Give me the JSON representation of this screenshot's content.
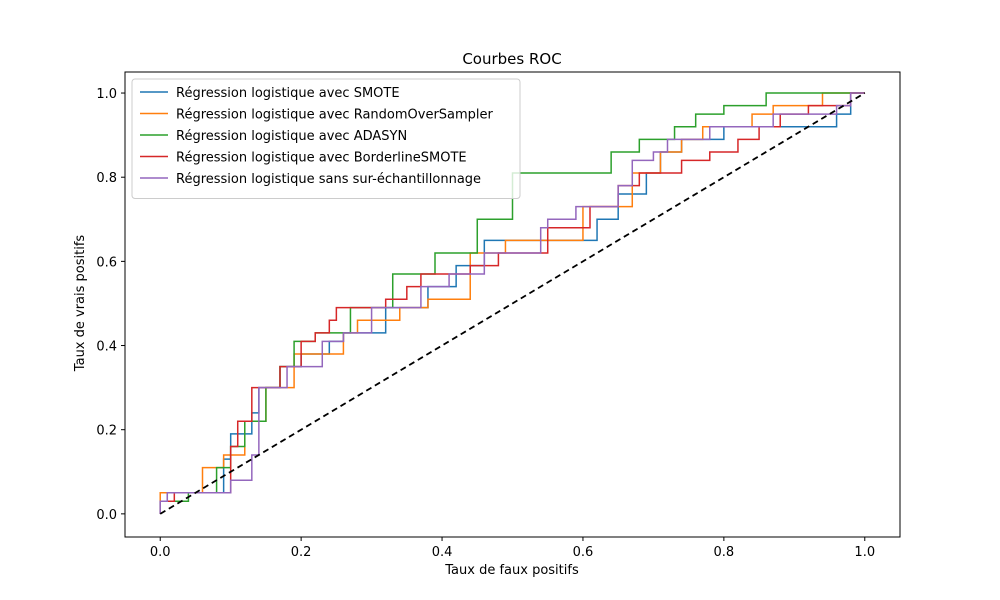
{
  "chart_data": {
    "type": "line",
    "title": "Courbes ROC",
    "xlabel": "Taux de faux positifs",
    "ylabel": "Taux de vrais positifs",
    "xlim": [
      -0.05,
      1.05
    ],
    "ylim": [
      -0.055,
      1.05
    ],
    "xticks": [
      "0.0",
      "0.2",
      "0.4",
      "0.6",
      "0.8",
      "1.0"
    ],
    "yticks": [
      "0.0",
      "0.2",
      "0.4",
      "0.6",
      "0.8",
      "1.0"
    ],
    "grid": false,
    "legend_position": "top-left",
    "chance_line": {
      "x": [
        0,
        1
      ],
      "y": [
        0,
        1
      ],
      "style": "dashed",
      "color": "#000000"
    },
    "series": [
      {
        "name": "Régression logistique avec SMOTE",
        "color": "#1f77b4",
        "x": [
          0.0,
          0.0,
          0.01,
          0.01,
          0.09,
          0.09,
          0.1,
          0.1,
          0.13,
          0.13,
          0.14,
          0.14,
          0.17,
          0.17,
          0.2,
          0.2,
          0.24,
          0.24,
          0.26,
          0.26,
          0.32,
          0.32,
          0.38,
          0.38,
          0.42,
          0.42,
          0.46,
          0.46,
          0.62,
          0.62,
          0.65,
          0.65,
          0.69,
          0.69,
          0.71,
          0.71,
          0.74,
          0.74,
          0.8,
          0.8,
          0.86,
          0.86,
          0.89,
          0.89,
          0.96,
          0.96,
          0.98,
          0.98,
          1.0
        ],
        "y": [
          0.0,
          0.03,
          0.03,
          0.05,
          0.05,
          0.13,
          0.13,
          0.19,
          0.19,
          0.24,
          0.24,
          0.3,
          0.3,
          0.35,
          0.35,
          0.38,
          0.38,
          0.41,
          0.41,
          0.43,
          0.43,
          0.49,
          0.49,
          0.54,
          0.54,
          0.59,
          0.59,
          0.65,
          0.65,
          0.7,
          0.7,
          0.76,
          0.76,
          0.81,
          0.81,
          0.86,
          0.86,
          0.89,
          0.89,
          0.92,
          0.92,
          0.92,
          0.92,
          0.92,
          0.92,
          0.95,
          0.95,
          1.0,
          1.0
        ]
      },
      {
        "name": "Régression logistique avec RandomOverSampler",
        "color": "#ff7f0e",
        "x": [
          0.0,
          0.0,
          0.06,
          0.06,
          0.09,
          0.09,
          0.12,
          0.12,
          0.15,
          0.15,
          0.19,
          0.19,
          0.26,
          0.26,
          0.28,
          0.28,
          0.34,
          0.34,
          0.38,
          0.38,
          0.44,
          0.44,
          0.49,
          0.49,
          0.6,
          0.6,
          0.67,
          0.67,
          0.71,
          0.71,
          0.74,
          0.74,
          0.77,
          0.77,
          0.84,
          0.84,
          0.87,
          0.87,
          0.94,
          0.94,
          0.97,
          0.97,
          1.0
        ],
        "y": [
          0.0,
          0.05,
          0.05,
          0.11,
          0.11,
          0.14,
          0.14,
          0.22,
          0.22,
          0.3,
          0.3,
          0.38,
          0.38,
          0.43,
          0.43,
          0.46,
          0.46,
          0.49,
          0.49,
          0.51,
          0.51,
          0.62,
          0.62,
          0.65,
          0.65,
          0.73,
          0.73,
          0.81,
          0.81,
          0.86,
          0.86,
          0.89,
          0.89,
          0.92,
          0.92,
          0.95,
          0.95,
          0.97,
          0.97,
          1.0,
          1.0,
          1.0,
          1.0
        ]
      },
      {
        "name": "Régression logistique avec ADASYN",
        "color": "#2ca02c",
        "x": [
          0.0,
          0.0,
          0.04,
          0.04,
          0.08,
          0.08,
          0.1,
          0.1,
          0.12,
          0.12,
          0.15,
          0.15,
          0.17,
          0.17,
          0.19,
          0.19,
          0.22,
          0.22,
          0.27,
          0.27,
          0.33,
          0.33,
          0.39,
          0.39,
          0.45,
          0.45,
          0.5,
          0.5,
          0.64,
          0.64,
          0.68,
          0.68,
          0.73,
          0.73,
          0.76,
          0.76,
          0.8,
          0.8,
          0.86,
          0.86,
          0.97,
          0.97,
          1.0
        ],
        "y": [
          0.0,
          0.03,
          0.03,
          0.05,
          0.05,
          0.11,
          0.11,
          0.16,
          0.16,
          0.22,
          0.22,
          0.3,
          0.3,
          0.35,
          0.35,
          0.41,
          0.41,
          0.43,
          0.43,
          0.49,
          0.49,
          0.57,
          0.57,
          0.62,
          0.62,
          0.7,
          0.7,
          0.81,
          0.81,
          0.86,
          0.86,
          0.89,
          0.89,
          0.92,
          0.92,
          0.95,
          0.95,
          0.97,
          0.97,
          1.0,
          1.0,
          1.0,
          1.0
        ]
      },
      {
        "name": "Régression logistique avec BorderlineSMOTE",
        "color": "#d62728",
        "x": [
          0.0,
          0.0,
          0.02,
          0.02,
          0.1,
          0.1,
          0.11,
          0.11,
          0.13,
          0.13,
          0.17,
          0.17,
          0.2,
          0.2,
          0.22,
          0.22,
          0.24,
          0.24,
          0.25,
          0.25,
          0.32,
          0.32,
          0.35,
          0.35,
          0.37,
          0.37,
          0.39,
          0.39,
          0.44,
          0.44,
          0.48,
          0.48,
          0.5,
          0.5,
          0.55,
          0.55,
          0.61,
          0.61,
          0.65,
          0.65,
          0.68,
          0.68,
          0.74,
          0.74,
          0.78,
          0.78,
          0.82,
          0.82,
          0.85,
          0.85,
          0.88,
          0.88,
          0.92,
          0.92,
          0.98,
          0.98,
          1.0
        ],
        "y": [
          0.0,
          0.03,
          0.03,
          0.05,
          0.05,
          0.16,
          0.16,
          0.22,
          0.22,
          0.3,
          0.3,
          0.35,
          0.35,
          0.41,
          0.41,
          0.43,
          0.43,
          0.46,
          0.46,
          0.49,
          0.49,
          0.51,
          0.51,
          0.54,
          0.54,
          0.57,
          0.57,
          0.57,
          0.57,
          0.59,
          0.59,
          0.62,
          0.62,
          0.62,
          0.62,
          0.68,
          0.68,
          0.73,
          0.73,
          0.78,
          0.78,
          0.81,
          0.81,
          0.84,
          0.84,
          0.86,
          0.86,
          0.89,
          0.89,
          0.92,
          0.92,
          0.95,
          0.95,
          0.97,
          0.97,
          1.0,
          1.0
        ]
      },
      {
        "name": "Régression logistique sans sur-échantillonnage",
        "color": "#9467bd",
        "x": [
          0.0,
          0.0,
          0.01,
          0.01,
          0.1,
          0.1,
          0.13,
          0.13,
          0.14,
          0.14,
          0.18,
          0.18,
          0.23,
          0.23,
          0.26,
          0.26,
          0.3,
          0.3,
          0.37,
          0.37,
          0.41,
          0.41,
          0.46,
          0.46,
          0.54,
          0.54,
          0.55,
          0.55,
          0.59,
          0.59,
          0.65,
          0.65,
          0.67,
          0.67,
          0.7,
          0.7,
          0.72,
          0.72,
          0.75,
          0.75,
          0.78,
          0.78,
          0.87,
          0.87,
          0.96,
          0.96,
          0.98,
          0.98,
          1.0
        ],
        "y": [
          0.0,
          0.03,
          0.03,
          0.05,
          0.05,
          0.08,
          0.08,
          0.14,
          0.14,
          0.3,
          0.3,
          0.35,
          0.35,
          0.41,
          0.41,
          0.43,
          0.43,
          0.49,
          0.49,
          0.54,
          0.54,
          0.57,
          0.57,
          0.62,
          0.62,
          0.68,
          0.68,
          0.7,
          0.7,
          0.73,
          0.73,
          0.78,
          0.78,
          0.84,
          0.84,
          0.86,
          0.86,
          0.89,
          0.89,
          0.89,
          0.89,
          0.92,
          0.92,
          0.95,
          0.95,
          0.97,
          0.97,
          1.0,
          1.0
        ]
      }
    ]
  }
}
